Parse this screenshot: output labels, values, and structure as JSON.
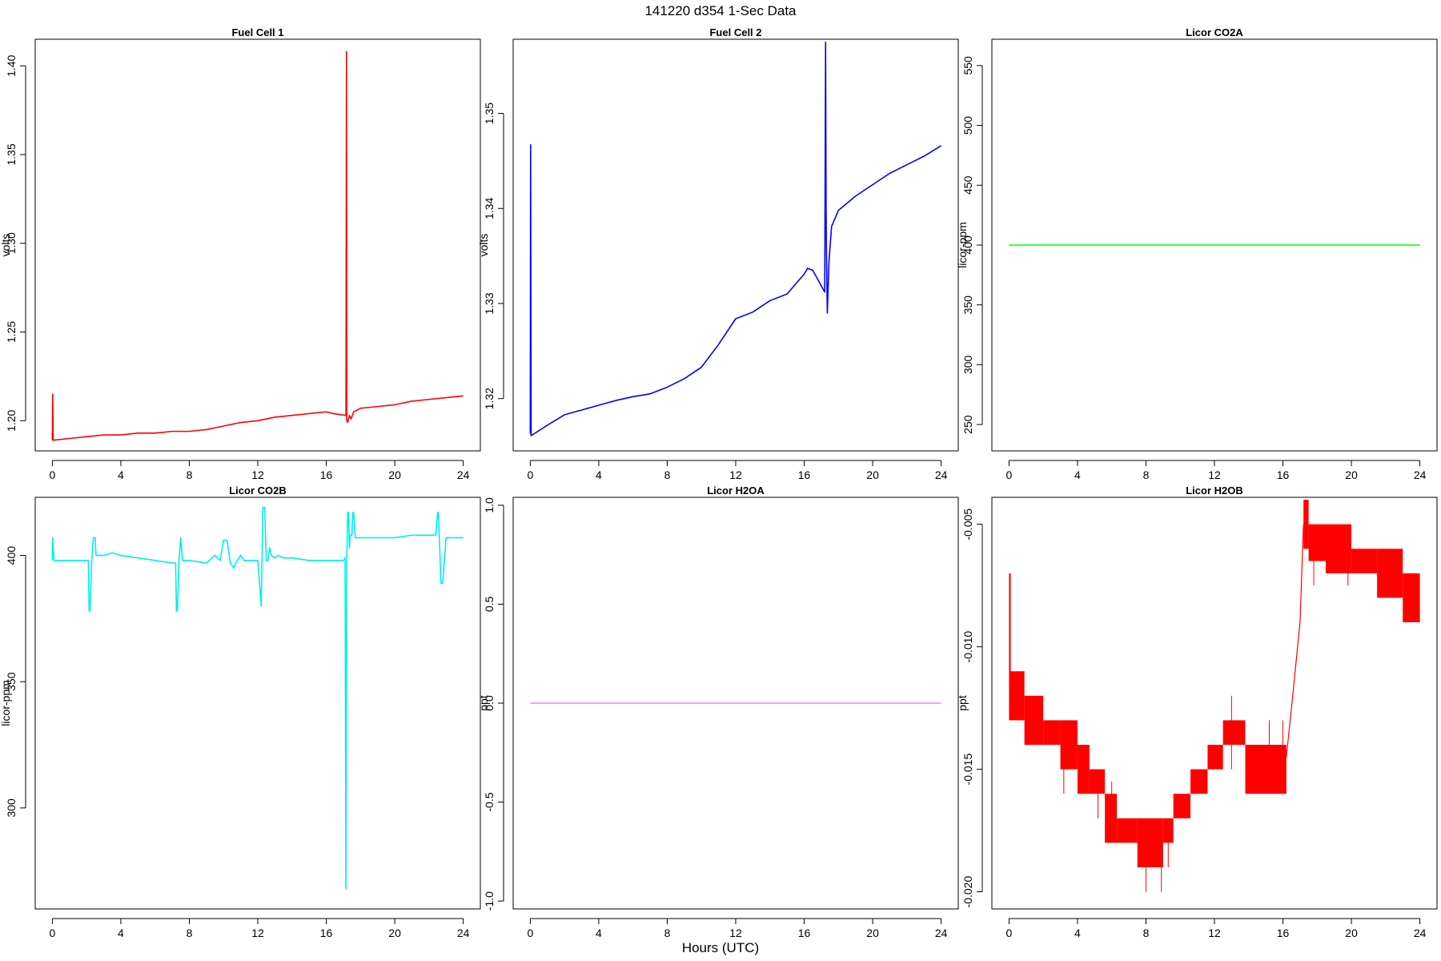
{
  "page": {
    "title": "141220    d354    1-Sec Data",
    "x_axis_label": "Hours (UTC)"
  },
  "chart_data": [
    {
      "type": "line",
      "title": "Fuel Cell 1",
      "xlabel": "",
      "ylabel": "volts",
      "xlim": [
        -1,
        25
      ],
      "ylim": [
        1.183,
        1.415
      ],
      "xticks": [
        0,
        4,
        8,
        12,
        16,
        20,
        24
      ],
      "yticks": [
        1.2,
        1.25,
        1.3,
        1.35,
        1.4
      ],
      "ytick_labels": [
        "1.20",
        "1.25",
        "1.30",
        "1.35",
        "1.40"
      ],
      "color": "#ff0000",
      "series": [
        {
          "x": [
            0,
            0.02,
            0.05,
            1,
            2,
            3,
            4,
            5,
            6,
            7,
            8,
            9,
            10,
            11,
            12,
            13,
            14,
            15,
            16,
            16.4,
            17.15,
            17.18,
            17.2,
            17.25,
            17.35,
            17.45,
            17.6,
            18,
            19,
            20,
            21,
            22,
            23,
            24
          ],
          "y": [
            1.189,
            1.215,
            1.189,
            1.19,
            1.191,
            1.192,
            1.192,
            1.193,
            1.193,
            1.194,
            1.194,
            1.195,
            1.197,
            1.199,
            1.2,
            1.202,
            1.203,
            1.204,
            1.205,
            1.204,
            1.203,
            1.408,
            1.2,
            1.199,
            1.203,
            1.201,
            1.205,
            1.207,
            1.208,
            1.209,
            1.211,
            1.212,
            1.213,
            1.214
          ]
        }
      ]
    },
    {
      "type": "line",
      "title": "Fuel Cell 2",
      "xlabel": "",
      "ylabel": "volts",
      "xlim": [
        -1,
        25
      ],
      "ylim": [
        1.3145,
        1.3578
      ],
      "xticks": [
        0,
        4,
        8,
        12,
        16,
        20,
        24
      ],
      "yticks": [
        1.32,
        1.33,
        1.34,
        1.35
      ],
      "ytick_labels": [
        "1.32",
        "1.33",
        "1.34",
        "1.35"
      ],
      "color": "#0000ff",
      "series": [
        {
          "x": [
            0,
            0.02,
            0.05,
            1,
            2,
            3,
            4,
            5,
            6,
            7,
            8,
            9,
            10,
            11,
            12,
            13,
            14,
            15,
            16,
            16.2,
            16.5,
            17.2,
            17.25,
            17.28,
            17.3,
            17.35,
            17.45,
            17.6,
            18,
            19,
            20,
            21,
            22,
            23,
            24
          ],
          "y": [
            1.3163,
            1.3467,
            1.3161,
            1.3172,
            1.3183,
            1.3188,
            1.3193,
            1.3198,
            1.3202,
            1.3205,
            1.3212,
            1.3221,
            1.3233,
            1.3257,
            1.3284,
            1.3291,
            1.3303,
            1.331,
            1.3331,
            1.3337,
            1.3335,
            1.3312,
            1.3575,
            1.3397,
            1.3355,
            1.329,
            1.3345,
            1.3381,
            1.3398,
            1.3413,
            1.3425,
            1.3437,
            1.3446,
            1.3455,
            1.3466
          ]
        }
      ]
    },
    {
      "type": "line",
      "title": "Licor CO2A",
      "xlabel": "",
      "ylabel": "licor-ppm",
      "xlim": [
        -1,
        25
      ],
      "ylim": [
        228,
        572
      ],
      "xticks": [
        0,
        4,
        8,
        12,
        16,
        20,
        24
      ],
      "yticks": [
        250,
        300,
        350,
        400,
        450,
        500,
        550
      ],
      "ytick_labels": [
        "250",
        "300",
        "350",
        "400",
        "450",
        "500",
        "550"
      ],
      "color": "#00ff00",
      "series": [
        {
          "x": [
            0,
            24
          ],
          "y": [
            400,
            400
          ]
        }
      ]
    },
    {
      "type": "line",
      "title": "Licor CO2B",
      "xlabel": "",
      "ylabel": "licor-ppm",
      "xlim": [
        -1,
        25
      ],
      "ylim": [
        260,
        423
      ],
      "xticks": [
        0,
        4,
        8,
        12,
        16,
        20,
        24
      ],
      "yticks": [
        300,
        350,
        400
      ],
      "ytick_labels": [
        "300",
        "350",
        "400"
      ],
      "color": "#00eeee",
      "series": [
        {
          "x": [
            0,
            0.02,
            0.1,
            1,
            2.1,
            2.15,
            2.2,
            2.3,
            2.4,
            2.5,
            2.55,
            3,
            3.5,
            4,
            5,
            6,
            7,
            7.2,
            7.25,
            7.3,
            7.4,
            7.5,
            7.6,
            8,
            9,
            9.5,
            9.8,
            10,
            10.2,
            10.4,
            10.6,
            10.8,
            11,
            11.2,
            11.5,
            12,
            12.2,
            12.3,
            12.4,
            12.5,
            12.6,
            12.7,
            12.8,
            13,
            13.2,
            13.5,
            14,
            15,
            16,
            16.8,
            17.0,
            17.1,
            17.15,
            17.2,
            17.25,
            17.3,
            17.35,
            17.4,
            17.5,
            17.55,
            17.6,
            17.7,
            18,
            19,
            20,
            21,
            22,
            22.4,
            22.5,
            22.55,
            22.6,
            22.7,
            22.8,
            23,
            24
          ],
          "y": [
            398,
            407,
            398,
            398,
            398,
            378,
            378,
            398,
            407,
            407,
            400,
            400,
            401,
            400,
            399,
            398,
            397,
            397,
            378,
            378,
            398,
            407,
            398,
            398,
            397,
            400,
            398,
            406,
            406,
            397,
            395,
            398,
            400,
            398,
            398,
            398,
            380,
            419,
            419,
            398,
            398,
            403,
            400,
            399,
            400,
            399,
            399,
            398,
            398,
            398,
            398,
            399,
            268,
            399,
            417,
            417,
            403,
            408,
            408,
            417,
            417,
            407,
            407,
            407,
            407,
            408,
            408,
            408,
            417,
            417,
            408,
            389,
            389,
            407,
            407
          ]
        }
      ]
    },
    {
      "type": "line",
      "title": "Licor H2OA",
      "xlabel": "",
      "ylabel": "ppt",
      "xlim": [
        -1,
        25
      ],
      "ylim": [
        -1.04,
        1.04
      ],
      "xticks": [
        0,
        4,
        8,
        12,
        16,
        20,
        24
      ],
      "yticks": [
        -1.0,
        -0.5,
        0.0,
        0.5,
        1.0
      ],
      "ytick_labels": [
        "-1.0",
        "-0.5",
        "0.0",
        "0.5",
        "1.0"
      ],
      "color": "#ee82ee",
      "series": [
        {
          "x": [
            0,
            24
          ],
          "y": [
            0,
            0
          ]
        }
      ]
    },
    {
      "type": "line",
      "title": "Licor H2OB",
      "xlabel": "",
      "ylabel": "ppt",
      "xlim": [
        -1,
        25
      ],
      "ylim": [
        -0.0207,
        -0.0039
      ],
      "xticks": [
        0,
        4,
        8,
        12,
        16,
        20,
        24
      ],
      "yticks": [
        -0.02,
        -0.015,
        -0.01,
        -0.005
      ],
      "ytick_labels": [
        "-0.020",
        "-0.015",
        "-0.010",
        "-0.005"
      ],
      "color": "#ff0000",
      "bands": [
        {
          "x": [
            0,
            0.1
          ],
          "lo": -0.013,
          "hi": -0.007
        },
        {
          "x": [
            0.1,
            0.9
          ],
          "lo": -0.013,
          "hi": -0.011
        },
        {
          "x": [
            0.9,
            2.0
          ],
          "lo": -0.014,
          "hi": -0.012
        },
        {
          "x": [
            2.0,
            3.0
          ],
          "lo": -0.014,
          "hi": -0.013
        },
        {
          "x": [
            3.0,
            4.0
          ],
          "lo": -0.015,
          "hi": -0.013
        },
        {
          "x": [
            4.0,
            4.7
          ],
          "lo": -0.016,
          "hi": -0.014
        },
        {
          "x": [
            4.7,
            5.6
          ],
          "lo": -0.016,
          "hi": -0.015
        },
        {
          "x": [
            5.6,
            6.3
          ],
          "lo": -0.018,
          "hi": -0.016
        },
        {
          "x": [
            6.3,
            7.5
          ],
          "lo": -0.018,
          "hi": -0.017
        },
        {
          "x": [
            7.5,
            9.0
          ],
          "lo": -0.019,
          "hi": -0.017
        },
        {
          "x": [
            9.0,
            9.6
          ],
          "lo": -0.018,
          "hi": -0.017
        },
        {
          "x": [
            9.6,
            10.6
          ],
          "lo": -0.017,
          "hi": -0.016
        },
        {
          "x": [
            10.6,
            11.6
          ],
          "lo": -0.016,
          "hi": -0.015
        },
        {
          "x": [
            11.6,
            12.5
          ],
          "lo": -0.015,
          "hi": -0.014
        },
        {
          "x": [
            12.5,
            13.8
          ],
          "lo": -0.014,
          "hi": -0.013
        },
        {
          "x": [
            13.8,
            16.2
          ],
          "lo": -0.016,
          "hi": -0.014
        },
        {
          "x": [
            17.2,
            17.5
          ],
          "lo": -0.006,
          "hi": -0.004
        },
        {
          "x": [
            17.5,
            18.5
          ],
          "lo": -0.0065,
          "hi": -0.005
        },
        {
          "x": [
            18.5,
            20.0
          ],
          "lo": -0.007,
          "hi": -0.005
        },
        {
          "x": [
            20.0,
            21.5
          ],
          "lo": -0.007,
          "hi": -0.006
        },
        {
          "x": [
            21.5,
            23.0
          ],
          "lo": -0.008,
          "hi": -0.006
        },
        {
          "x": [
            23.0,
            24.0
          ],
          "lo": -0.009,
          "hi": -0.007
        }
      ],
      "spikes": [
        {
          "x": 3.2,
          "lo": -0.016,
          "hi": -0.013
        },
        {
          "x": 5.2,
          "lo": -0.017,
          "hi": -0.015
        },
        {
          "x": 6.0,
          "lo": -0.018,
          "hi": -0.0155
        },
        {
          "x": 8.0,
          "lo": -0.02,
          "hi": -0.017
        },
        {
          "x": 8.9,
          "lo": -0.02,
          "hi": -0.017
        },
        {
          "x": 9.3,
          "lo": -0.019,
          "hi": -0.017
        },
        {
          "x": 13.0,
          "lo": -0.015,
          "hi": -0.012
        },
        {
          "x": 15.2,
          "lo": -0.016,
          "hi": -0.013
        },
        {
          "x": 16.0,
          "lo": -0.016,
          "hi": -0.013
        },
        {
          "x": 17.8,
          "lo": -0.0075,
          "hi": -0.005
        },
        {
          "x": 19.8,
          "lo": -0.0075,
          "hi": -0.005
        }
      ],
      "transition": {
        "x": [
          16.2,
          16.5,
          17.0,
          17.2
        ],
        "y": [
          -0.0145,
          -0.0125,
          -0.009,
          -0.005
        ]
      }
    }
  ]
}
